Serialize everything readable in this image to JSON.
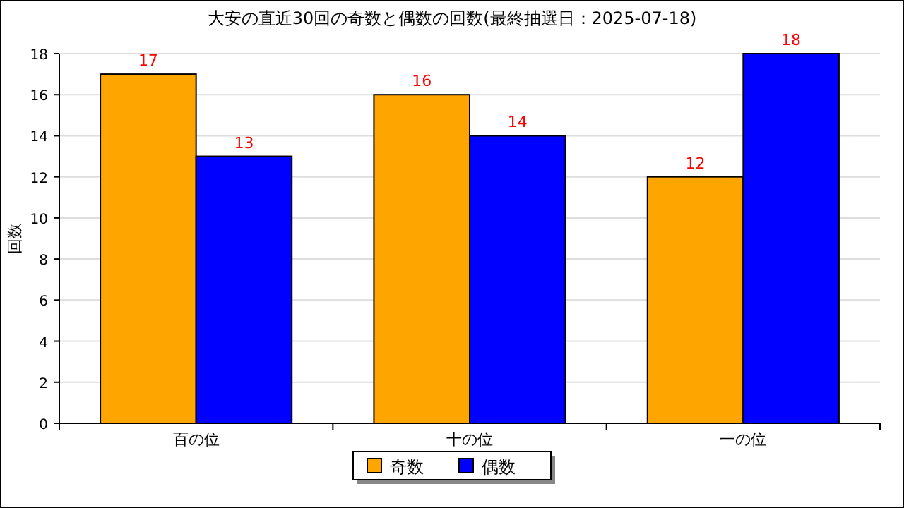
{
  "chart_data": {
    "type": "bar",
    "title": "大安の直近30回の奇数と偶数の回数(最終抽選日：2025-07-18)",
    "ylabel": "回数",
    "categories": [
      "百の位",
      "十の位",
      "一の位"
    ],
    "series": [
      {
        "name": "奇数",
        "color": "#ffa500",
        "values": [
          17,
          16,
          12
        ]
      },
      {
        "name": "偶数",
        "color": "#0000ff",
        "values": [
          13,
          14,
          18
        ]
      }
    ],
    "ylim": [
      0,
      18
    ],
    "yticks": [
      0,
      2,
      4,
      6,
      8,
      10,
      12,
      14,
      16,
      18
    ],
    "grid": "y",
    "legend": "bottom",
    "data_labels": true
  }
}
